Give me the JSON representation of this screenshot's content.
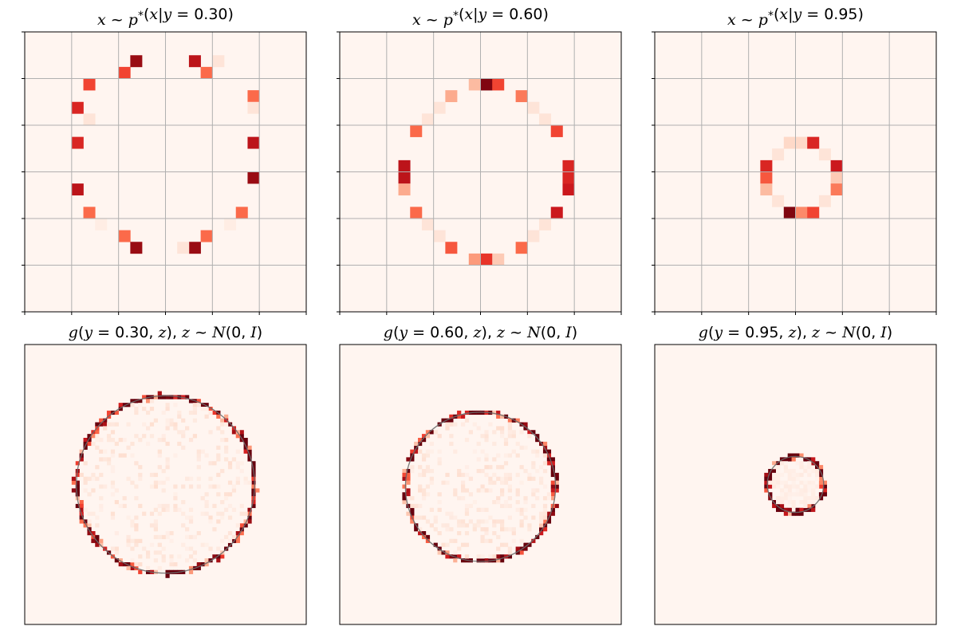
{
  "figure": {
    "colormap": "Reds",
    "panel_background": "#fff5f0",
    "grid_color": "#b0b0b0"
  },
  "chart_data": [
    {
      "type": "heatmap",
      "row": "top",
      "title": {
        "x": "x",
        "sim": "~",
        "p": "p",
        "star": "*",
        "open": "(",
        "var": "x",
        "bar": "|",
        "y": "y",
        "eq": " = ",
        "val": "0.30",
        "close": ")"
      },
      "grid": true,
      "y_condition": 0.3,
      "bins": 24,
      "xlim": [
        -3,
        3
      ],
      "ylim": [
        -3,
        3
      ],
      "cells": [
        [
          9,
          2,
          0.9
        ],
        [
          14,
          2,
          0.8
        ],
        [
          16,
          2,
          0.1
        ],
        [
          8,
          3,
          0.6
        ],
        [
          15,
          3,
          0.5
        ],
        [
          5,
          4,
          0.6
        ],
        [
          19,
          5,
          0.5
        ],
        [
          19,
          6,
          0.1
        ],
        [
          4,
          6,
          0.7
        ],
        [
          5,
          7,
          0.1
        ],
        [
          19,
          9,
          0.8
        ],
        [
          4,
          9,
          0.7
        ],
        [
          4,
          13,
          0.8
        ],
        [
          19,
          12,
          0.9
        ],
        [
          5,
          15,
          0.5
        ],
        [
          18,
          15,
          0.5
        ],
        [
          8,
          17,
          0.5
        ],
        [
          15,
          17,
          0.5
        ],
        [
          9,
          18,
          0.9
        ],
        [
          14,
          18,
          0.9
        ],
        [
          13,
          18,
          0.1
        ],
        [
          6,
          16,
          0.05
        ],
        [
          17,
          16,
          0.05
        ]
      ]
    },
    {
      "type": "heatmap",
      "row": "top",
      "title": {
        "x": "x",
        "sim": "~",
        "p": "p",
        "star": "*",
        "open": "(",
        "var": "x",
        "bar": "|",
        "y": "y",
        "eq": " = ",
        "val": "0.60",
        "close": ")"
      },
      "grid": true,
      "y_condition": 0.6,
      "bins": 24,
      "xlim": [
        -3,
        3
      ],
      "ylim": [
        -3,
        3
      ],
      "cells": [
        [
          11,
          4,
          0.25
        ],
        [
          12,
          4,
          0.95
        ],
        [
          13,
          4,
          0.6
        ],
        [
          9,
          5,
          0.3
        ],
        [
          15,
          5,
          0.45
        ],
        [
          8,
          6,
          0.1
        ],
        [
          16,
          6,
          0.1
        ],
        [
          7,
          7,
          0.1
        ],
        [
          17,
          7,
          0.1
        ],
        [
          6,
          8,
          0.5
        ],
        [
          18,
          8,
          0.6
        ],
        [
          5,
          11,
          0.8
        ],
        [
          5,
          12,
          0.8
        ],
        [
          5,
          13,
          0.3
        ],
        [
          19,
          11,
          0.7
        ],
        [
          19,
          12,
          0.7
        ],
        [
          19,
          13,
          0.75
        ],
        [
          18,
          15,
          0.75
        ],
        [
          6,
          15,
          0.5
        ],
        [
          7,
          16,
          0.1
        ],
        [
          17,
          16,
          0.1
        ],
        [
          8,
          17,
          0.1
        ],
        [
          16,
          17,
          0.1
        ],
        [
          9,
          18,
          0.55
        ],
        [
          15,
          18,
          0.5
        ],
        [
          11,
          19,
          0.35
        ],
        [
          12,
          19,
          0.65
        ],
        [
          13,
          19,
          0.2
        ]
      ]
    },
    {
      "type": "heatmap",
      "row": "top",
      "title": {
        "x": "x",
        "sim": "~",
        "p": "p",
        "star": "*",
        "open": "(",
        "var": "x",
        "bar": "|",
        "y": "y",
        "eq": " = ",
        "val": "0.95",
        "close": ")"
      },
      "grid": true,
      "y_condition": 0.95,
      "bins": 24,
      "xlim": [
        -3,
        3
      ],
      "ylim": [
        -3,
        3
      ],
      "cells": [
        [
          11,
          9,
          0.15
        ],
        [
          12,
          9,
          0.15
        ],
        [
          13,
          9,
          0.7
        ],
        [
          10,
          10,
          0.1
        ],
        [
          14,
          10,
          0.1
        ],
        [
          9,
          11,
          0.7
        ],
        [
          15,
          11,
          0.75
        ],
        [
          9,
          12,
          0.55
        ],
        [
          15,
          12,
          0.2
        ],
        [
          9,
          13,
          0.25
        ],
        [
          15,
          13,
          0.45
        ],
        [
          10,
          14,
          0.1
        ],
        [
          14,
          14,
          0.1
        ],
        [
          11,
          15,
          0.95
        ],
        [
          12,
          15,
          0.4
        ],
        [
          13,
          15,
          0.6
        ]
      ]
    },
    {
      "type": "heatmap",
      "row": "bottom",
      "title": {
        "g": "g",
        "open": "(",
        "y": "y",
        "eq": " = ",
        "val": "0.30",
        "mid": ", ",
        "z": "z",
        "close": ")",
        "sep": ", ",
        "z2": "z",
        "sim": " ~ ",
        "N": "N",
        "args": "(0, ",
        "I": "I",
        "end": ")"
      },
      "grid": false,
      "y_condition": 0.3,
      "xlim": [
        -3,
        3
      ],
      "ylim": [
        -3,
        3
      ],
      "ring_radius": 1.9,
      "ring_center": [
        0,
        0
      ],
      "ring_points": 330,
      "inner_fill": 0.1,
      "seed": 11
    },
    {
      "type": "heatmap",
      "row": "bottom",
      "title": {
        "g": "g",
        "open": "(",
        "y": "y",
        "eq": " = ",
        "val": "0.60",
        "mid": ", ",
        "z": "z",
        "close": ")",
        "sep": ", ",
        "z2": "z",
        "sim": " ~ ",
        "N": "N",
        "args": "(0, ",
        "I": "I",
        "end": ")"
      },
      "grid": false,
      "y_condition": 0.6,
      "xlim": [
        -3,
        3
      ],
      "ylim": [
        -3,
        3
      ],
      "ring_radius": 1.6,
      "ring_center": [
        0,
        -0.05
      ],
      "ring_points": 300,
      "inner_fill": 0.1,
      "seed": 23
    },
    {
      "type": "heatmap",
      "row": "bottom",
      "title": {
        "g": "g",
        "open": "(",
        "y": "y",
        "eq": " = ",
        "val": "0.95",
        "mid": ", ",
        "z": "z",
        "close": ")",
        "sep": ", ",
        "z2": "z",
        "sim": " ~ ",
        "N": "N",
        "args": "(0, ",
        "I": "I",
        "end": ")"
      },
      "grid": false,
      "y_condition": 0.95,
      "xlim": [
        -3,
        3
      ],
      "ylim": [
        -3,
        3
      ],
      "ring_radius": 0.6,
      "ring_center": [
        0,
        0.0
      ],
      "ring_points": 160,
      "inner_fill": 0.05,
      "seed": 37
    }
  ]
}
